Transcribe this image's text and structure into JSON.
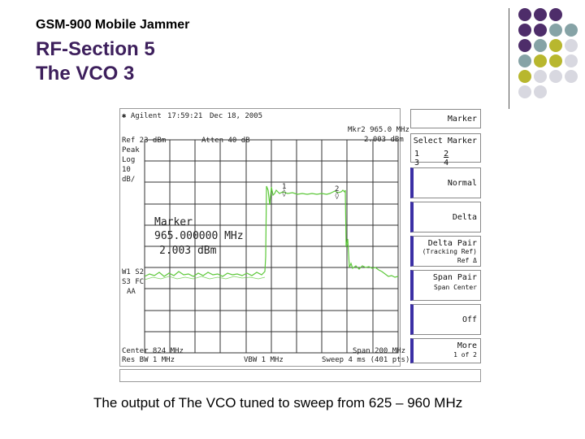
{
  "slide": {
    "subtitle": "GSM-900 Mobile Jammer",
    "title_line1": "RF-Section 5",
    "title_line2": "The VCO  3",
    "caption": "The output of The VCO tuned to sweep from 625 – 960 MHz"
  },
  "analyzer": {
    "brand": "Agilent",
    "time": "17:59:21",
    "date": "Dec 18, 2005",
    "ref": "Ref 23 dBm",
    "atten": "Atten 40 dB",
    "mkr_readout": "Mkr2  965.0 MHz",
    "mkr_value": "2.003 dBm",
    "peak_label": "Peak",
    "log_label": "Log",
    "scale_label": "10",
    "unit_label": "dB/",
    "side_labels": [
      "W1 S2",
      "S3 FC",
      "AA"
    ],
    "marker_box_title": "Marker",
    "marker_box_freq": "965.000000 MHz",
    "marker_box_amp": "2.003 dBm",
    "marker1_label": "1",
    "marker2_label": "2",
    "center": "Center 824 MHz",
    "span": "Span 200 MHz",
    "res_bw": "Res BW 1 MHz",
    "vbw": "VBW 1 MHz",
    "sweep": "Sweep 4 ms (401 pts)",
    "trace_color": "#5dc83a"
  },
  "softkeys": {
    "marker_title": "Marker",
    "select_marker": "Select Marker",
    "select_options": [
      "1",
      "2",
      "3",
      "4"
    ],
    "normal": "Normal",
    "delta": "Delta",
    "delta_pair": "Delta Pair",
    "delta_pair_sub": "(Tracking Ref)",
    "delta_pair_opts": "Ref   Δ",
    "span_pair": "Span Pair",
    "span_pair_opts": "Span  Center",
    "off": "Off",
    "more": "More",
    "more_sub": "1 of 2"
  },
  "colors": {
    "title": "#3d1f5c",
    "softkey_accent": "#3b2fa5",
    "dot_purple": "#4e2d6a",
    "dot_teal": "#86a3a6",
    "dot_olive": "#b8b72e",
    "dot_gray": "#d8d8e0"
  }
}
